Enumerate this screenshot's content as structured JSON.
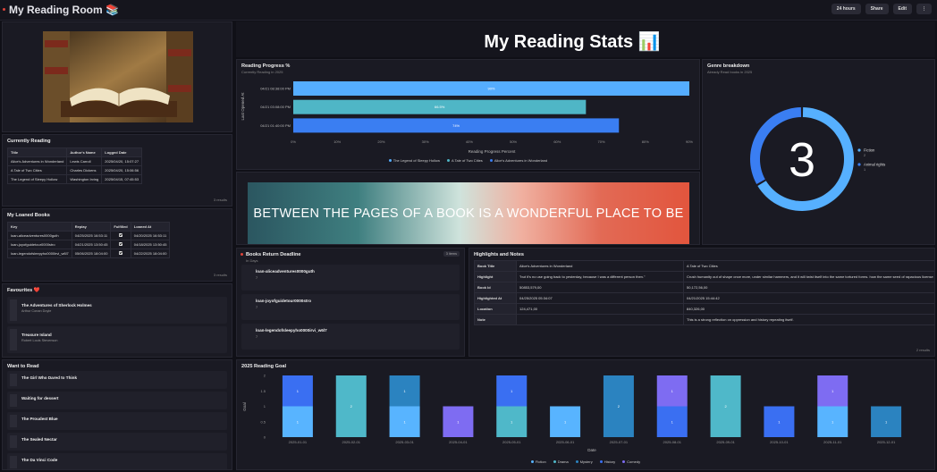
{
  "header": {
    "title": "My Reading Room 📚",
    "buttons": [
      "24 hours",
      "Share",
      "Edit",
      "⋮"
    ]
  },
  "dashboard_title": "My Reading Stats 📊",
  "currently_reading": {
    "title": "Currently Reading",
    "columns": [
      "Title",
      "Author's Name",
      "Logged Date"
    ],
    "rows": [
      [
        "Alice's Adventures in Wonderland",
        "Lewis Carroll",
        "2025/04/20, 15:07:27"
      ],
      [
        "A Tale of Two Cities",
        "Charles Dickens",
        "2025/04/20, 15:06:56"
      ],
      [
        "The Legend of Sleepy Hollow",
        "Washington Irving",
        "2025/04/15, 07:45:53"
      ]
    ],
    "footer": "3 results"
  },
  "loaned_books": {
    "title": "My Loaned Books",
    "columns": [
      "Key",
      "Replay",
      "Fulfilled",
      "Loaned At"
    ],
    "rows": [
      [
        "loan-aliceadventures0000guth",
        "04/25/2025 16:53:11",
        true,
        "04/20/2025 16:53:11"
      ],
      [
        "loan-joyofguidetour0000stro",
        "04/21/2025 13:50:45",
        true,
        "04/18/2025 13:50:45"
      ],
      [
        "loan-legendofsleepyho0000irvi_w6l7",
        "05/06/2025 18:04:00",
        true,
        "04/22/2025 18:04:00"
      ]
    ],
    "footer": "3 results"
  },
  "favourites": {
    "title": "Favourites ❤️",
    "items": [
      {
        "title": "The Adventures of Sherlock Holmes",
        "author": "Arthur Conan Doyle"
      },
      {
        "title": "Treasure Island",
        "author": "Robert Louis Stevenson"
      }
    ]
  },
  "want_to_read": {
    "title": "Want to Read",
    "items": [
      "The Girl Who Dared to Think",
      "Waiting for dessert",
      "The Proudest Blue",
      "The Sealed Nectar",
      "The Da Vinci Code"
    ]
  },
  "quote": "BETWEEN THE PAGES OF A BOOK IS A WONDERFUL PLACE TO BE",
  "return_deadline": {
    "title": "Books Return Deadline",
    "subtitle": "In Days",
    "badge": "3 items",
    "items": [
      {
        "key": "loan-aliceadventures0000guth",
        "days": "7"
      },
      {
        "key": "loan-joyofguidetour0000stro",
        "days": "7"
      },
      {
        "key": "loan-legendofsleepyho0000irvi_w6l7",
        "days": "7"
      }
    ]
  },
  "highlights": {
    "title": "Highlights and Notes",
    "rows": [
      [
        "Book Title",
        "Alice's Adventures in Wonderland",
        "A Tale of Two Cities"
      ],
      [
        "Highlight",
        "\"but it's no use going back to yesterday, because I was a different person then.\"",
        "Crush humanity out of shape once more, under similar hammers, and it will twist itself into the same tortured forms. how the same seed of rapacious license and oppression"
      ],
      [
        "Book Id",
        "50853,579,00",
        "50,172,56,00"
      ],
      [
        "Highlighted At",
        "04/25/2025 05:34:07",
        "04/21/2025 15:44:42"
      ],
      [
        "Location",
        "124,471,00",
        "840,326,00"
      ],
      [
        "Note",
        null,
        "This is a strong reflection on oppression and history repeating itself."
      ]
    ],
    "footer": "2 results"
  },
  "chart_data": [
    {
      "type": "bar",
      "orientation": "horizontal",
      "title": "Reading Progress %",
      "subtitle": "Currently Reading in 2025",
      "x_label": "Reading Progress Percent",
      "y_label": "Last Opened At",
      "categories": [
        "04/21 08:38:00 PM",
        "04/21 03:08:00 PM",
        "04/21 01:40:00 PM"
      ],
      "series": [
        {
          "name": "The Legend of Sleepy Hollow",
          "color": "#55adff",
          "values": [
            90,
            null,
            null
          ],
          "value_labels": [
            "90%",
            null,
            null
          ]
        },
        {
          "name": "A Tale of Two Cities",
          "color": "#4fb6c6",
          "values": [
            null,
            66.5,
            null
          ],
          "value_labels": [
            null,
            "66.5%",
            null
          ]
        },
        {
          "name": "Alice's Adventures in Wonderland",
          "color": "#3a7ef2",
          "values": [
            null,
            null,
            74
          ],
          "value_labels": [
            null,
            null,
            "74%"
          ]
        }
      ],
      "xlim": [
        0,
        90
      ],
      "xticks": [
        {
          "value": 0,
          "label": "0%"
        },
        {
          "value": 10,
          "label": "10%"
        },
        {
          "value": 20,
          "label": "20%"
        },
        {
          "value": 30,
          "label": "30%"
        },
        {
          "value": 40,
          "label": "40%"
        },
        {
          "value": 50,
          "label": "50%"
        },
        {
          "value": 60,
          "label": "60%"
        },
        {
          "value": 70,
          "label": "70%"
        },
        {
          "value": 80,
          "label": "80%"
        },
        {
          "value": 90,
          "label": "90%"
        }
      ]
    },
    {
      "type": "pie",
      "title": "Genre breakdown",
      "subtitle": "Already Read books in 2025",
      "labels": [
        "Fiction",
        "Animal rights"
      ],
      "values": [
        2,
        1
      ],
      "colors": [
        "#56b0ff",
        "#3a7ef2"
      ],
      "total": 3
    },
    {
      "type": "bar",
      "stacked": true,
      "title": "2025 Reading Goal",
      "x_label": "Date",
      "y_label": "Goal",
      "categories": [
        "2025-01-01",
        "2025-02-01",
        "2025-03-01",
        "2025-04-01",
        "2025-05-01",
        "2025-06-01",
        "2025-07-01",
        "2025-08-01",
        "2025-09-01",
        "2025-10-01",
        "2025-11-01",
        "2025-12-01"
      ],
      "series": [
        {
          "name": "Fiction",
          "color": "#58b4ff",
          "values": [
            1,
            null,
            1,
            null,
            null,
            1,
            null,
            null,
            null,
            null,
            1,
            null
          ]
        },
        {
          "name": "Drama",
          "color": "#4fb8c9",
          "values": [
            null,
            2,
            null,
            null,
            1,
            null,
            null,
            null,
            2,
            null,
            null,
            null
          ]
        },
        {
          "name": "Mystery",
          "color": "#2b83c0",
          "values": [
            null,
            null,
            1,
            null,
            null,
            null,
            2,
            null,
            null,
            null,
            null,
            1
          ]
        },
        {
          "name": "History",
          "color": "#3a6ff2",
          "values": [
            1,
            null,
            null,
            null,
            1,
            null,
            null,
            1,
            null,
            1,
            null,
            null
          ]
        },
        {
          "name": "Comedy",
          "color": "#7e6cf2",
          "values": [
            null,
            null,
            null,
            1,
            null,
            null,
            null,
            1,
            null,
            null,
            1,
            null
          ]
        }
      ],
      "ylim": [
        0,
        2
      ],
      "yticks": [
        0,
        0.5,
        1,
        1.5,
        2
      ]
    }
  ]
}
